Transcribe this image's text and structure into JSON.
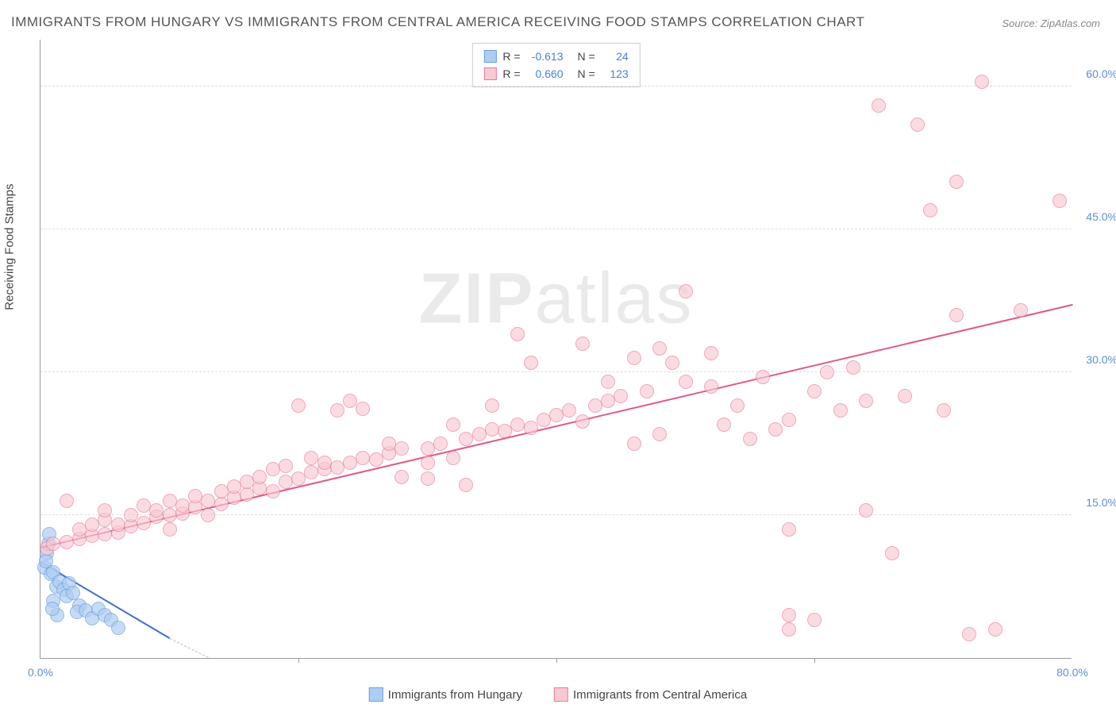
{
  "title": "IMMIGRANTS FROM HUNGARY VS IMMIGRANTS FROM CENTRAL AMERICA RECEIVING FOOD STAMPS CORRELATION CHART",
  "source": "Source: ZipAtlas.com",
  "ylabel": "Receiving Food Stamps",
  "watermark": "ZIPatlas",
  "chart": {
    "type": "scatter",
    "xlim": [
      0,
      80
    ],
    "ylim": [
      0,
      65
    ],
    "background_color": "#ffffff",
    "grid_color": "#dddddd",
    "grid_dash": true,
    "axis_color": "#999999",
    "tick_label_color": "#5b8fd6",
    "tick_fontsize": 14,
    "yticks": [
      15,
      30,
      45,
      60
    ],
    "ytick_labels": [
      "15.0%",
      "30.0%",
      "45.0%",
      "60.0%"
    ],
    "xticks": [
      0,
      20,
      40,
      60,
      80
    ],
    "xtick_labels": [
      "0.0%",
      "",
      "",
      "",
      "80.0%"
    ],
    "xtick_positions_shown": [
      0,
      80
    ]
  },
  "series": [
    {
      "name": "Immigrants from Hungary",
      "marker_fill": "#aecdf2",
      "marker_stroke": "#6b9fe0",
      "marker_opacity": 0.7,
      "marker_radius": 9,
      "line_color": "#3d6fc9",
      "line_width": 2,
      "regression": {
        "x1": 0,
        "y1": 10,
        "x2": 10,
        "y2": 2
      },
      "extrapolation": {
        "x1": 10,
        "y1": 2,
        "x2": 13,
        "y2": 0
      },
      "R": "-0.613",
      "N": "24",
      "points": [
        [
          0.3,
          9.5
        ],
        [
          0.5,
          11
        ],
        [
          0.4,
          10.2
        ],
        [
          0.6,
          12
        ],
        [
          0.8,
          8.8
        ],
        [
          1.0,
          9.0
        ],
        [
          1.2,
          7.5
        ],
        [
          0.7,
          13
        ],
        [
          1.5,
          8.0
        ],
        [
          1.8,
          7.2
        ],
        [
          2.0,
          6.5
        ],
        [
          2.2,
          7.8
        ],
        [
          1.0,
          6.0
        ],
        [
          2.5,
          6.8
        ],
        [
          3.0,
          5.5
        ],
        [
          2.8,
          4.8
        ],
        [
          3.5,
          5.0
        ],
        [
          4.0,
          4.2
        ],
        [
          4.5,
          5.2
        ],
        [
          5.0,
          4.5
        ],
        [
          5.5,
          4.0
        ],
        [
          6.0,
          3.2
        ],
        [
          1.3,
          4.5
        ],
        [
          0.9,
          5.2
        ]
      ]
    },
    {
      "name": "Immigrants from Central America",
      "marker_fill": "#f9c9d4",
      "marker_stroke": "#e87a9a",
      "marker_opacity": 0.65,
      "marker_radius": 9,
      "line_color": "#e05a85",
      "line_width": 2,
      "regression": {
        "x1": 0,
        "y1": 11.5,
        "x2": 80,
        "y2": 37
      },
      "R": "0.660",
      "N": "123",
      "points": [
        [
          0.5,
          11.5
        ],
        [
          1,
          12
        ],
        [
          2,
          12.2
        ],
        [
          2,
          16.5
        ],
        [
          3,
          12.5
        ],
        [
          3,
          13.5
        ],
        [
          4,
          12.8
        ],
        [
          4,
          14
        ],
        [
          5,
          13
        ],
        [
          5,
          14.5
        ],
        [
          5,
          15.5
        ],
        [
          6,
          13.2
        ],
        [
          6,
          14
        ],
        [
          7,
          13.8
        ],
        [
          7,
          15
        ],
        [
          8,
          14.2
        ],
        [
          8,
          16
        ],
        [
          9,
          14.8
        ],
        [
          9,
          15.5
        ],
        [
          10,
          13.5
        ],
        [
          10,
          15
        ],
        [
          10,
          16.5
        ],
        [
          11,
          15.2
        ],
        [
          11,
          16
        ],
        [
          12,
          15.8
        ],
        [
          12,
          17
        ],
        [
          13,
          15
        ],
        [
          13,
          16.5
        ],
        [
          14,
          16.2
        ],
        [
          14,
          17.5
        ],
        [
          15,
          16.8
        ],
        [
          15,
          18
        ],
        [
          16,
          17.2
        ],
        [
          16,
          18.5
        ],
        [
          17,
          17.8
        ],
        [
          17,
          19
        ],
        [
          18,
          17.5
        ],
        [
          18,
          19.8
        ],
        [
          19,
          18.5
        ],
        [
          19,
          20.2
        ],
        [
          20,
          18.8
        ],
        [
          20,
          26.5
        ],
        [
          21,
          19.5
        ],
        [
          21,
          21
        ],
        [
          22,
          19.8
        ],
        [
          22,
          20.5
        ],
        [
          23,
          20
        ],
        [
          23,
          26
        ],
        [
          24,
          20.5
        ],
        [
          24,
          27
        ],
        [
          25,
          21
        ],
        [
          25,
          26.2
        ],
        [
          26,
          20.8
        ],
        [
          27,
          21.5
        ],
        [
          27,
          22.5
        ],
        [
          28,
          19
        ],
        [
          28,
          22
        ],
        [
          30,
          22
        ],
        [
          30,
          18.8
        ],
        [
          30,
          20.5
        ],
        [
          31,
          22.5
        ],
        [
          32,
          21
        ],
        [
          32,
          24.5
        ],
        [
          33,
          23
        ],
        [
          33,
          18.2
        ],
        [
          34,
          23.5
        ],
        [
          35,
          24
        ],
        [
          35,
          26.5
        ],
        [
          36,
          23.8
        ],
        [
          37,
          24.5
        ],
        [
          37,
          34
        ],
        [
          38,
          24.2
        ],
        [
          38,
          31
        ],
        [
          39,
          25
        ],
        [
          40,
          25.5
        ],
        [
          41,
          26
        ],
        [
          42,
          24.8
        ],
        [
          42,
          33
        ],
        [
          43,
          26.5
        ],
        [
          44,
          29
        ],
        [
          44,
          27
        ],
        [
          45,
          27.5
        ],
        [
          46,
          31.5
        ],
        [
          46,
          22.5
        ],
        [
          47,
          28
        ],
        [
          48,
          32.5
        ],
        [
          48,
          23.5
        ],
        [
          49,
          31
        ],
        [
          50,
          29
        ],
        [
          50,
          38.5
        ],
        [
          52,
          28.5
        ],
        [
          52,
          32
        ],
        [
          53,
          24.5
        ],
        [
          54,
          26.5
        ],
        [
          55,
          23
        ],
        [
          56,
          29.5
        ],
        [
          57,
          24
        ],
        [
          58,
          25
        ],
        [
          58,
          3
        ],
        [
          58,
          4.5
        ],
        [
          58,
          13.5
        ],
        [
          60,
          4
        ],
        [
          60,
          28
        ],
        [
          61,
          30
        ],
        [
          62,
          26
        ],
        [
          63,
          30.5
        ],
        [
          64,
          27
        ],
        [
          64,
          15.5
        ],
        [
          65,
          58
        ],
        [
          66,
          11
        ],
        [
          67,
          27.5
        ],
        [
          68,
          56
        ],
        [
          69,
          47
        ],
        [
          70,
          26
        ],
        [
          71,
          36
        ],
        [
          71,
          50
        ],
        [
          72,
          2.5
        ],
        [
          73,
          60.5
        ],
        [
          74,
          3
        ],
        [
          76,
          36.5
        ],
        [
          79,
          48
        ]
      ]
    }
  ],
  "legend_bottom": [
    {
      "swatch_fill": "#aecdf2",
      "swatch_stroke": "#6b9fe0",
      "label": "Immigrants from Hungary"
    },
    {
      "swatch_fill": "#f9c9d4",
      "swatch_stroke": "#e87a9a",
      "label": "Immigrants from Central America"
    }
  ]
}
